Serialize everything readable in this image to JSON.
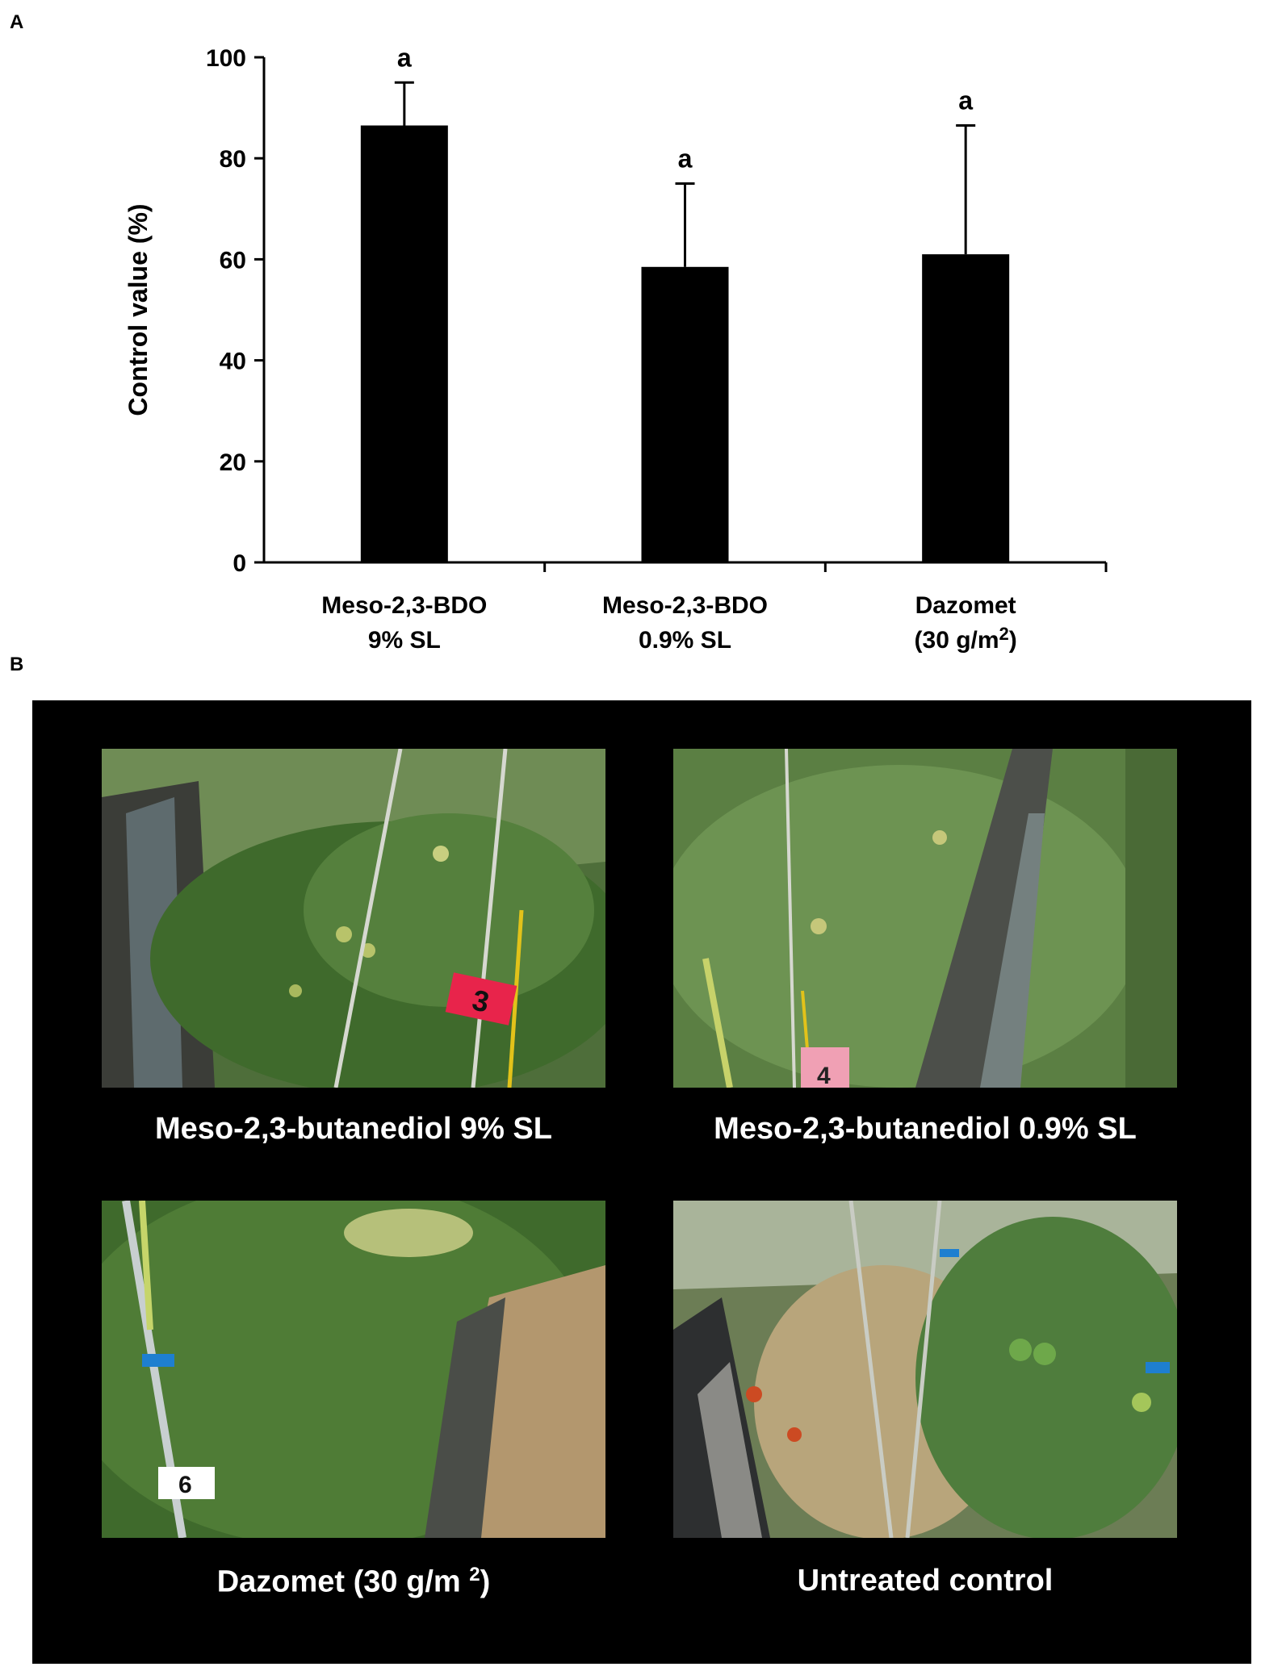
{
  "panels": {
    "a_label": "A",
    "b_label": "B"
  },
  "chart_data": {
    "type": "bar",
    "ylabel": "Control value (%)",
    "ylim": [
      0,
      100
    ],
    "yticks": [
      0,
      20,
      40,
      60,
      80,
      100
    ],
    "categories": [
      {
        "line1": "Meso-2,3-BDO",
        "line2": "9% SL",
        "line2_sup": "",
        "line2_end": ""
      },
      {
        "line1": "Meso-2,3-BDO",
        "line2": "0.9% SL",
        "line2_sup": "",
        "line2_end": ""
      },
      {
        "line1": "Dazomet",
        "line2": "(30 g/m",
        "line2_sup": "2",
        "line2_end": ")"
      }
    ],
    "values": [
      86.5,
      58.5,
      61
    ],
    "errors": [
      8.5,
      16.5,
      25.5
    ],
    "significance": [
      "a",
      "a",
      "a"
    ],
    "bar_color": "#000000"
  },
  "photos": [
    {
      "caption": "Meso-2,3-butanediol 9% SL",
      "caption_sup": "",
      "caption_end": "",
      "tag": "3",
      "tag_color": "#e8244b"
    },
    {
      "caption": "Meso-2,3-butanediol 0.9% SL",
      "caption_sup": "",
      "caption_end": "",
      "tag": "4",
      "tag_color": "#f0a0b4"
    },
    {
      "caption": "Dazomet (30 g/m ",
      "caption_sup": "2",
      "caption_end": ")",
      "tag": "6",
      "tag_color": "#ffffff"
    },
    {
      "caption": "Untreated control",
      "caption_sup": "",
      "caption_end": "",
      "tag": "",
      "tag_color": ""
    }
  ]
}
